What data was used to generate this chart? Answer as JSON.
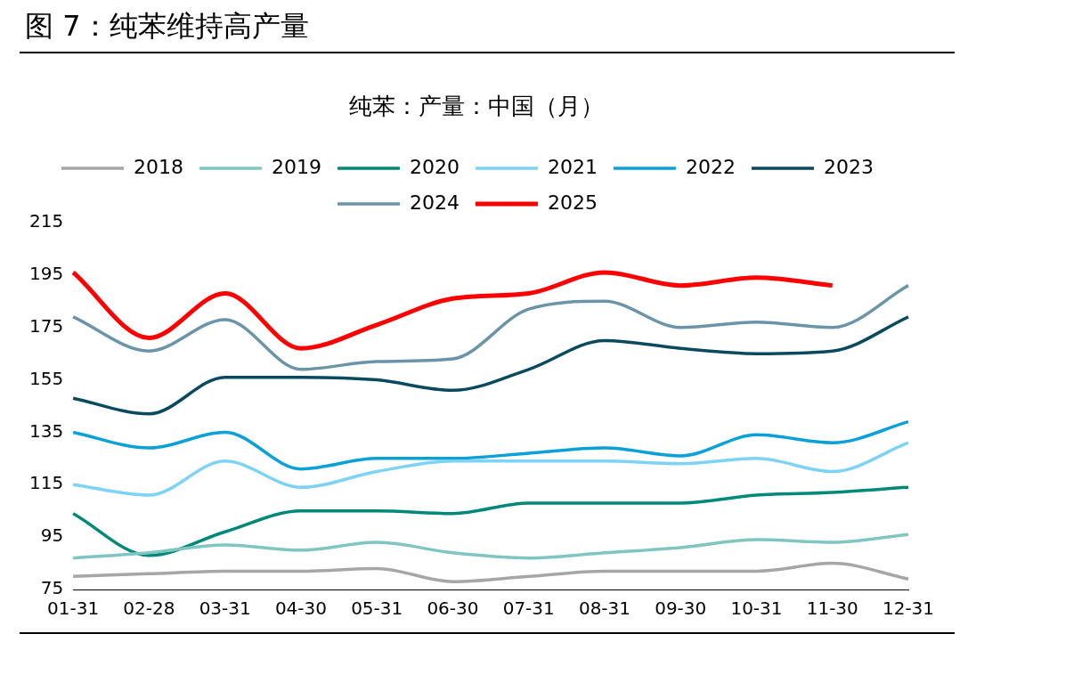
{
  "chart_data": {
    "type": "line",
    "title": "图 7：纯苯维持高产量",
    "subtitle": "纯苯：产量：中国（月）",
    "categories": [
      "01-31",
      "02-28",
      "03-31",
      "04-30",
      "05-31",
      "06-30",
      "07-31",
      "08-31",
      "09-30",
      "10-31",
      "11-30",
      "12-31"
    ],
    "ylim": [
      75,
      215
    ],
    "yticks": [
      75,
      95,
      115,
      135,
      155,
      175,
      195,
      215
    ],
    "grid": false,
    "legend": "top",
    "marker": "none",
    "line_style": "solid",
    "series": [
      {
        "name": "2018",
        "color": "#a6a6a6",
        "values": [
          80,
          81,
          82,
          82,
          83,
          78,
          80,
          82,
          82,
          82,
          85,
          79
        ]
      },
      {
        "name": "2019",
        "color": "#7fc6c1",
        "values": [
          87,
          89,
          92,
          90,
          93,
          89,
          87,
          89,
          91,
          94,
          93,
          96
        ]
      },
      {
        "name": "2020",
        "color": "#008878",
        "values": [
          104,
          88,
          97,
          105,
          105,
          104,
          108,
          108,
          108,
          111,
          112,
          114
        ]
      },
      {
        "name": "2021",
        "color": "#7dd3f5",
        "values": [
          115,
          111,
          124,
          114,
          120,
          124,
          124,
          124,
          123,
          125,
          120,
          131
        ]
      },
      {
        "name": "2022",
        "color": "#0aa0d8",
        "values": [
          135,
          129,
          135,
          121,
          125,
          125,
          127,
          129,
          126,
          134,
          131,
          139
        ]
      },
      {
        "name": "2023",
        "color": "#0a4a5e",
        "values": [
          148,
          142,
          156,
          156,
          155,
          151,
          159,
          170,
          167,
          165,
          166,
          179
        ]
      },
      {
        "name": "2024",
        "color": "#6b94a8",
        "values": [
          179,
          166,
          178,
          159,
          162,
          163,
          182,
          185,
          175,
          177,
          175,
          191
        ]
      },
      {
        "name": "2025",
        "color": "#ff0000",
        "values": [
          196,
          171,
          188,
          167,
          176,
          186,
          188,
          196,
          191,
          194,
          191,
          null
        ]
      }
    ]
  }
}
